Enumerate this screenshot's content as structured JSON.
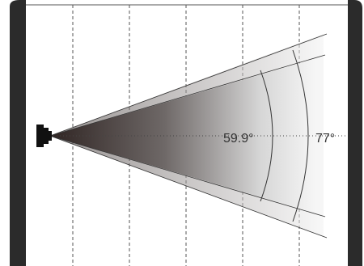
{
  "diagram": {
    "type": "field-of-view",
    "angles": [
      {
        "label": "59.9°",
        "degrees": 59.9
      },
      {
        "label": "77°",
        "degrees": 77
      }
    ],
    "colors": {
      "frame": "#2b2b2b",
      "cone_dark": "#2a1f1d",
      "cone_light": "#f4f4f4",
      "guides": "#555555"
    },
    "icons": [
      "camera-lens-icon"
    ]
  }
}
